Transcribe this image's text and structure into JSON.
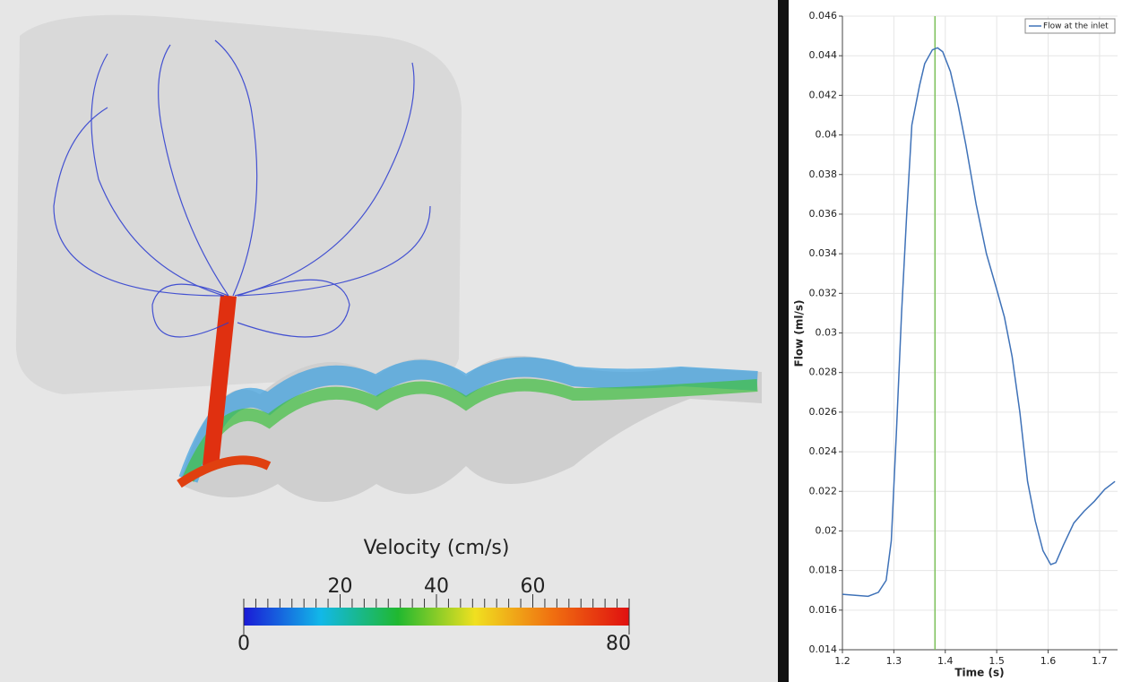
{
  "chart_data": [
    {
      "type": "colorbar",
      "title": "Velocity (cm/s)",
      "xlim": [
        0,
        80
      ],
      "xticks": [
        0,
        20,
        40,
        60,
        80
      ],
      "colors": [
        "#1a1ad6",
        "#12b8e8",
        "#20b830",
        "#f0e020",
        "#f07010",
        "#e01010"
      ]
    },
    {
      "type": "line",
      "xlabel": "Time (s)",
      "ylabel": "Flow (ml/s)",
      "x": [
        1.2,
        1.25,
        1.27,
        1.285,
        1.295,
        1.305,
        1.315,
        1.325,
        1.335,
        1.35,
        1.36,
        1.375,
        1.385,
        1.395,
        1.41,
        1.425,
        1.44,
        1.46,
        1.48,
        1.5,
        1.515,
        1.53,
        1.545,
        1.56,
        1.575,
        1.59,
        1.605,
        1.615,
        1.63,
        1.65,
        1.67,
        1.69,
        1.71,
        1.73
      ],
      "series": [
        {
          "name": "Flow at the inlet",
          "color": "#3f72b8",
          "values": [
            0.0168,
            0.0167,
            0.0169,
            0.0175,
            0.0195,
            0.025,
            0.031,
            0.036,
            0.0405,
            0.0425,
            0.0436,
            0.0443,
            0.0444,
            0.0442,
            0.0432,
            0.0415,
            0.0395,
            0.0365,
            0.034,
            0.0322,
            0.0308,
            0.0288,
            0.026,
            0.0225,
            0.0205,
            0.019,
            0.0183,
            0.0184,
            0.0193,
            0.0204,
            0.021,
            0.0215,
            0.0221,
            0.0225
          ]
        }
      ],
      "xlim": [
        1.2,
        1.735
      ],
      "xticks": [
        1.2,
        1.3,
        1.4,
        1.5,
        1.6,
        1.7
      ],
      "ylim": [
        0.014,
        0.046
      ],
      "yticks": [
        0.014,
        0.016,
        0.018,
        0.02,
        0.022,
        0.024,
        0.026,
        0.028,
        0.03,
        0.032,
        0.034,
        0.036,
        0.038,
        0.04,
        0.042,
        0.044,
        0.046
      ],
      "grid": true,
      "legend": "top-right",
      "vline": {
        "x": 1.38,
        "color": "#7cc05a"
      }
    }
  ]
}
